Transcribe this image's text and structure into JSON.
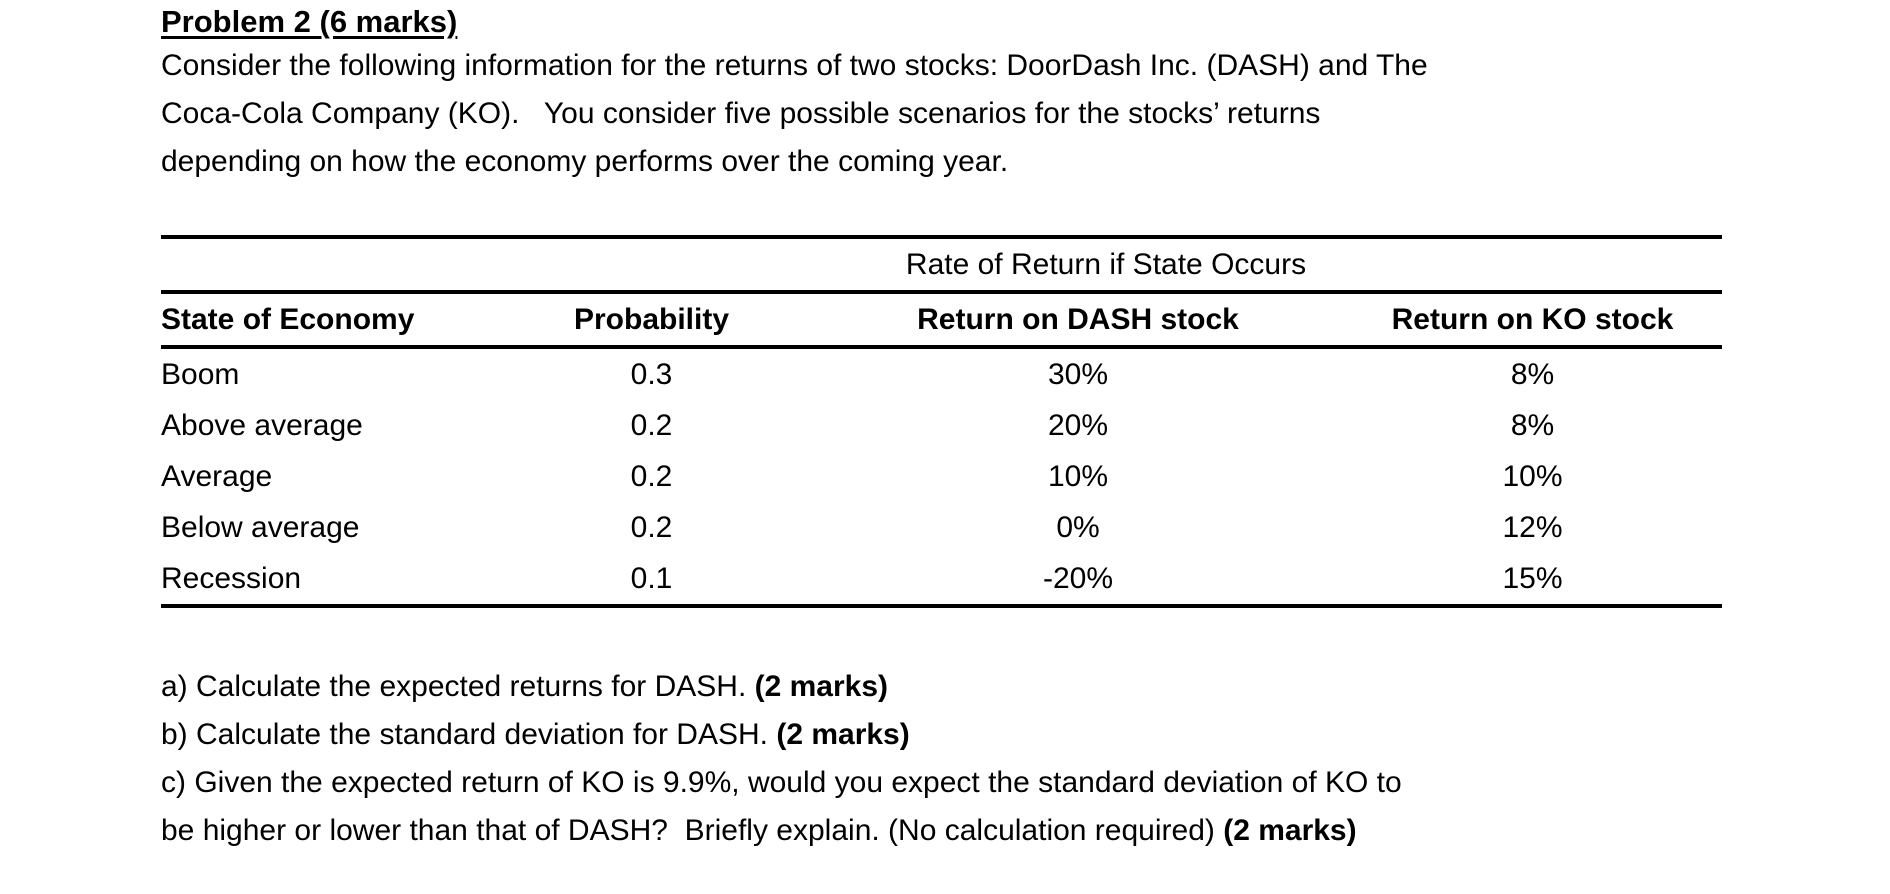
{
  "page": {
    "title": "Problem 2 (6 marks)",
    "intro_lines": [
      "Consider the following information for the returns of two stocks: DoorDash Inc. (DASH) and The",
      "Coca-Cola Company (KO).   You consider five possible scenarios for the stocks’ returns",
      "depending on how the economy performs over the coming year."
    ],
    "table": {
      "span_header": "Rate of Return if State Occurs",
      "columns": {
        "state": "State of Economy",
        "probability": "Probability",
        "dash": "Return on DASH stock",
        "ko": "Return on KO stock"
      },
      "rows": [
        {
          "state": "Boom",
          "probability": "0.3",
          "dash": "30%",
          "ko": "8%"
        },
        {
          "state": "Above average",
          "probability": "0.2",
          "dash": "20%",
          "ko": "8%"
        },
        {
          "state": "Average",
          "probability": "0.2",
          "dash": "10%",
          "ko": "10%"
        },
        {
          "state": "Below average",
          "probability": "0.2",
          "dash": "0%",
          "ko": "12%"
        },
        {
          "state": "Recession",
          "probability": "0.1",
          "dash": "-20%",
          "ko": "15%"
        }
      ]
    },
    "questions": {
      "a": {
        "text": "a) Calculate the expected returns for DASH. ",
        "marks": "(2 marks)"
      },
      "b": {
        "text": "b) Calculate the standard deviation for DASH. ",
        "marks": "(2 marks)"
      },
      "c_line1": "c) Given the expected return of KO is 9.9%, would you expect the standard deviation of KO to",
      "c_line2": {
        "text": "be higher or lower than that of DASH?  Briefly explain. (No calculation required) ",
        "marks": "(2 marks)"
      }
    }
  }
}
